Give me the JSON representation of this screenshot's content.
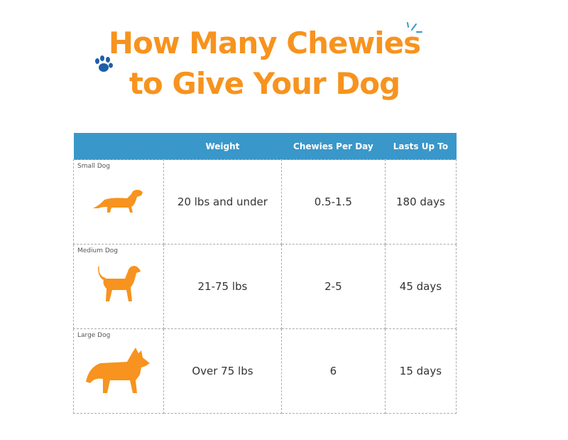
{
  "title": {
    "line1": "How Many Chewies",
    "line2": "to Give Your Dog"
  },
  "colors": {
    "title": "#F7931E",
    "header": "#3A97C9",
    "paw": "#1F5FA8",
    "dog": "#F7931E"
  },
  "table": {
    "headers": [
      "",
      "Weight",
      "Chewies Per Day",
      "Lasts Up To"
    ],
    "rows": [
      {
        "label": "Small Dog",
        "icon": "dachshund-icon",
        "weight": "20 lbs and under",
        "chewies": "0.5-1.5",
        "lasts": "180 days"
      },
      {
        "label": "Medium Dog",
        "icon": "beagle-icon",
        "weight": "21-75 lbs",
        "chewies": "2-5",
        "lasts": "45 days"
      },
      {
        "label": "Large Dog",
        "icon": "husky-icon",
        "weight": "Over 75 lbs",
        "chewies": "6",
        "lasts": "15 days"
      }
    ]
  }
}
